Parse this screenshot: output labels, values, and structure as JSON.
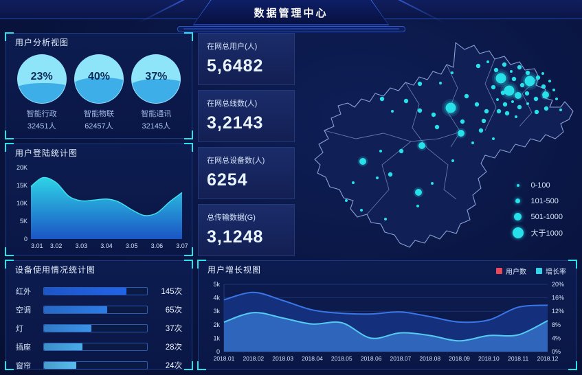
{
  "header": {
    "title": "数据管理中心"
  },
  "panels": {
    "user_analysis": {
      "title": "用户分析视图",
      "gauges": [
        {
          "percent": "23%",
          "label": "智能行政",
          "count": "32451人",
          "fill_pct": 34
        },
        {
          "percent": "40%",
          "label": "智能物联",
          "count": "62457人",
          "fill_pct": 45
        },
        {
          "percent": "37%",
          "label": "智能通讯",
          "count": "32145人",
          "fill_pct": 42
        }
      ],
      "liquid_color": "#3eaee8",
      "liquid_bg": "#8ee4f9"
    },
    "login_stats": {
      "title": "用户登陆统计图"
    },
    "device_usage": {
      "title": "设备使用情况统计图"
    },
    "user_growth": {
      "title": "用户增长视图"
    }
  },
  "stat_cards": [
    {
      "label": "在网总用户(人)",
      "value": "5,6482"
    },
    {
      "label": "在网总线数(人)",
      "value": "3,2143"
    },
    {
      "label": "在网总设备数(人)",
      "value": "6254"
    },
    {
      "label": "总传输数据(G)",
      "value": "3,1248"
    }
  ],
  "chart_data": [
    {
      "id": "login_area",
      "type": "area",
      "title": "用户登陆统计图",
      "x_ticks": [
        "3.01",
        "3.02",
        "3.03",
        "3.04",
        "3.05",
        "3.06",
        "3.07"
      ],
      "y_ticks": [
        "0",
        "5K",
        "10K",
        "15K",
        "20K"
      ],
      "ylim_k": [
        0,
        20
      ],
      "points_x": [
        0,
        0.08,
        0.167,
        0.25,
        0.333,
        0.42,
        0.5,
        0.58,
        0.667,
        0.75,
        0.833,
        0.92,
        1
      ],
      "points_y_k": [
        14.7,
        17.2,
        15.8,
        12.0,
        10.7,
        10.9,
        11.2,
        10.4,
        8.2,
        6.6,
        7.3,
        10.5,
        13.0
      ],
      "line_color": "#3fe0ef",
      "fill_top": "#2ed3e6",
      "fill_bottom": "#1b55c4"
    },
    {
      "id": "device_bars",
      "type": "bar",
      "orientation": "horizontal",
      "categories": [
        "红外",
        "空调",
        "灯",
        "插座",
        "窗帘"
      ],
      "values": [
        145,
        65,
        37,
        28,
        24
      ],
      "unit": "次",
      "bar_pct": [
        80,
        61,
        46,
        37,
        31
      ],
      "bar_colors": [
        "#2264e8",
        "#2e7ce4",
        "#3a92e6",
        "#49abe9",
        "#57bdec"
      ]
    },
    {
      "id": "growth",
      "type": "area-line",
      "title": "用户增长视图",
      "categories": [
        "2018.01",
        "2018.02",
        "2018.03",
        "2018.04",
        "2018.05",
        "2018.06",
        "2018.07",
        "2018.08",
        "2018.09",
        "2018.10",
        "2018.11",
        "2018.12"
      ],
      "series": [
        {
          "name": "用户数",
          "axis": "left",
          "values_k": [
            3.85,
            4.4,
            3.8,
            3.1,
            2.85,
            2.8,
            2.95,
            2.6,
            2.2,
            2.35,
            3.3,
            3.45
          ],
          "line_color": "#3a76e8",
          "fill_color": "rgba(21,49,126,0.95)",
          "legend_color": "#e8485a"
        },
        {
          "name": "增长率",
          "axis": "right",
          "values_pct": [
            8.8,
            11.6,
            10.0,
            8.2,
            8.6,
            4.0,
            5.6,
            4.8,
            3.2,
            4.8,
            5.0,
            9.2
          ],
          "line_color": "#55cbf2",
          "fill_color": "rgba(58,125,216,0.7)",
          "legend_color": "#35d3e8"
        }
      ],
      "left_ticks": [
        "0",
        "1k",
        "2k",
        "3k",
        "4k",
        "5k"
      ],
      "right_ticks": [
        "0%",
        "4%",
        "8%",
        "12%",
        "16%",
        "20%"
      ],
      "left_lim_k": [
        0,
        5
      ],
      "right_lim_pct": [
        0,
        20
      ],
      "grid": true,
      "legend_position": "top-right"
    },
    {
      "id": "map_bubbles",
      "type": "scatter-map",
      "bubble_color": "#27e0ea",
      "legend": [
        {
          "label": "0-100",
          "r": 2
        },
        {
          "label": "101-500",
          "r": 3.5
        },
        {
          "label": "501-1000",
          "r": 5.5
        },
        {
          "label": "大于1000",
          "r": 8
        }
      ],
      "outline": [
        [
          225,
          18
        ],
        [
          238,
          28
        ],
        [
          252,
          22
        ],
        [
          260,
          34
        ],
        [
          274,
          30
        ],
        [
          282,
          42
        ],
        [
          296,
          38
        ],
        [
          305,
          50
        ],
        [
          318,
          46
        ],
        [
          326,
          58
        ],
        [
          340,
          56
        ],
        [
          346,
          68
        ],
        [
          342,
          80
        ],
        [
          356,
          86
        ],
        [
          352,
          98
        ],
        [
          366,
          102
        ],
        [
          362,
          112
        ],
        [
          378,
          112
        ],
        [
          384,
          104
        ],
        [
          396,
          118
        ],
        [
          390,
          130
        ],
        [
          378,
          136
        ],
        [
          382,
          148
        ],
        [
          370,
          158
        ],
        [
          356,
          152
        ],
        [
          348,
          162
        ],
        [
          334,
          158
        ],
        [
          326,
          170
        ],
        [
          312,
          166
        ],
        [
          304,
          178
        ],
        [
          290,
          174
        ],
        [
          282,
          186
        ],
        [
          268,
          182
        ],
        [
          262,
          194
        ],
        [
          270,
          206
        ],
        [
          258,
          216
        ],
        [
          262,
          230
        ],
        [
          250,
          240
        ],
        [
          254,
          254
        ],
        [
          242,
          262
        ],
        [
          246,
          276
        ],
        [
          232,
          282
        ],
        [
          226,
          296
        ],
        [
          212,
          292
        ],
        [
          202,
          304
        ],
        [
          188,
          298
        ],
        [
          180,
          310
        ],
        [
          166,
          306
        ],
        [
          158,
          316
        ],
        [
          144,
          310
        ],
        [
          136,
          298
        ],
        [
          122,
          294
        ],
        [
          116,
          282
        ],
        [
          102,
          280
        ],
        [
          96,
          268
        ],
        [
          82,
          272
        ],
        [
          72,
          260
        ],
        [
          76,
          248
        ],
        [
          62,
          244
        ],
        [
          56,
          232
        ],
        [
          42,
          228
        ],
        [
          36,
          214
        ],
        [
          24,
          208
        ],
        [
          28,
          196
        ],
        [
          20,
          188
        ],
        [
          32,
          178
        ],
        [
          26,
          166
        ],
        [
          40,
          158
        ],
        [
          34,
          146
        ],
        [
          48,
          140
        ],
        [
          44,
          128
        ],
        [
          58,
          122
        ],
        [
          54,
          110
        ],
        [
          68,
          106
        ],
        [
          78,
          112
        ],
        [
          88,
          100
        ],
        [
          100,
          104
        ],
        [
          108,
          92
        ],
        [
          120,
          96
        ],
        [
          130,
          84
        ],
        [
          142,
          88
        ],
        [
          152,
          76
        ],
        [
          164,
          80
        ],
        [
          172,
          68
        ],
        [
          184,
          72
        ],
        [
          192,
          60
        ],
        [
          204,
          64
        ],
        [
          212,
          50
        ],
        [
          222,
          54
        ]
      ],
      "inner_borders": [
        [
          [
            152,
            76
          ],
          [
            172,
            108
          ],
          [
            162,
            142
          ],
          [
            184,
            172
          ]
        ],
        [
          [
            212,
            50
          ],
          [
            228,
            84
          ],
          [
            214,
            120
          ],
          [
            232,
            148
          ],
          [
            218,
            170
          ]
        ],
        [
          [
            282,
            42
          ],
          [
            268,
            78
          ],
          [
            284,
            112
          ],
          [
            268,
            146
          ]
        ],
        [
          [
            34,
            146
          ],
          [
            80,
            158
          ],
          [
            120,
            150
          ],
          [
            160,
            162
          ],
          [
            200,
            158
          ],
          [
            232,
            148
          ]
        ],
        [
          [
            96,
            268
          ],
          [
            128,
            232
          ],
          [
            118,
            196
          ],
          [
            160,
            162
          ]
        ],
        [
          [
            184,
            172
          ],
          [
            214,
            196
          ],
          [
            208,
            232
          ],
          [
            226,
            246
          ]
        ],
        [
          [
            346,
            68
          ],
          [
            322,
            92
          ],
          [
            336,
            120
          ],
          [
            318,
            140
          ]
        ]
      ],
      "bubbles": [
        [
          258,
          52,
          2
        ],
        [
          272,
          46,
          1
        ],
        [
          284,
          58,
          2
        ],
        [
          296,
          50,
          2
        ],
        [
          306,
          60,
          1
        ],
        [
          318,
          54,
          2
        ],
        [
          330,
          62,
          2
        ],
        [
          291,
          70,
          4
        ],
        [
          310,
          71,
          2
        ],
        [
          322,
          80,
          2
        ],
        [
          333,
          74,
          4
        ],
        [
          345,
          69,
          2
        ],
        [
          353,
          82,
          2
        ],
        [
          362,
          74,
          1
        ],
        [
          280,
          83,
          2
        ],
        [
          294,
          91,
          2
        ],
        [
          303,
          88,
          4
        ],
        [
          316,
          95,
          3
        ],
        [
          329,
          92,
          2
        ],
        [
          342,
          100,
          2
        ],
        [
          356,
          94,
          3
        ],
        [
          368,
          87,
          1
        ],
        [
          286,
          101,
          1
        ],
        [
          297,
          108,
          2
        ],
        [
          308,
          104,
          1
        ],
        [
          318,
          112,
          2
        ],
        [
          330,
          107,
          1
        ],
        [
          288,
          118,
          2
        ],
        [
          300,
          121,
          2
        ],
        [
          313,
          126,
          1
        ],
        [
          343,
          119,
          2
        ],
        [
          357,
          114,
          2
        ],
        [
          352,
          63,
          1
        ],
        [
          372,
          100,
          1
        ],
        [
          378,
          116,
          1
        ],
        [
          241,
          96,
          2
        ],
        [
          256,
          108,
          2
        ],
        [
          270,
          118,
          2
        ],
        [
          262,
          146,
          2
        ],
        [
          250,
          164,
          1
        ],
        [
          280,
          158,
          1
        ],
        [
          220,
          62,
          1
        ],
        [
          203,
          77,
          1
        ],
        [
          173,
          78,
          2
        ],
        [
          118,
          100,
          2
        ],
        [
          153,
          103,
          2
        ],
        [
          133,
          118,
          1
        ],
        [
          173,
          117,
          2
        ],
        [
          193,
          123,
          2
        ],
        [
          218,
          113,
          4
        ],
        [
          235,
          133,
          2
        ],
        [
          266,
          132,
          2
        ],
        [
          198,
          141,
          2
        ],
        [
          233,
          150,
          3
        ],
        [
          146,
          176,
          2
        ],
        [
          176,
          168,
          3
        ],
        [
          116,
          176,
          1
        ],
        [
          90,
          191,
          3
        ],
        [
          130,
          210,
          2
        ],
        [
          111,
          215,
          1
        ],
        [
          76,
          222,
          1
        ],
        [
          171,
          236,
          3
        ],
        [
          191,
          223,
          1
        ],
        [
          221,
          190,
          1
        ],
        [
          170,
          256,
          1
        ],
        [
          123,
          275,
          1
        ],
        [
          66,
          248,
          1
        ],
        [
          88,
          262,
          1
        ]
      ]
    }
  ]
}
